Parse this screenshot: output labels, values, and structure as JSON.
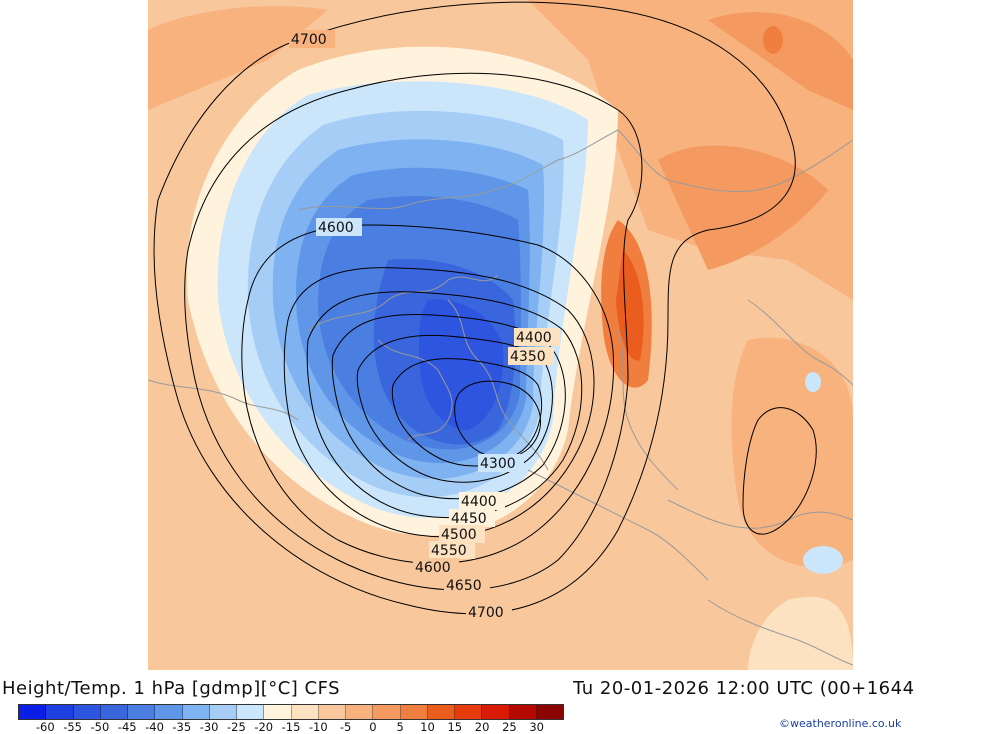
{
  "header": {
    "title_left": "Height/Temp. 1 hPa [gdmp][°C] CFS",
    "title_right": "Tu 20-01-2026 12:00 UTC (00+1644"
  },
  "credit": "©weatheronline.co.uk",
  "legend": {
    "ticks": [
      "-60",
      "-55",
      "-50",
      "-45",
      "-40",
      "-35",
      "-30",
      "-25",
      "-20",
      "-15",
      "-10",
      "-5",
      "0",
      "5",
      "10",
      "15",
      "20",
      "25",
      "30"
    ],
    "colors": [
      "#0a1ee8",
      "#1f3fe0",
      "#2d55e0",
      "#3a66dd",
      "#4a7ee0",
      "#5f96e8",
      "#7fb2f0",
      "#a5cdf6",
      "#cbe6fb",
      "#fff3dd",
      "#fde2c2",
      "#f9c79c",
      "#f7b27e",
      "#f49a60",
      "#f07e3e",
      "#eb5d1e",
      "#e63c0d",
      "#d91a05",
      "#b40a02",
      "#8a0501"
    ]
  },
  "contours": {
    "l4700_a": "4700",
    "l4600_a": "4600",
    "l4400_a": "4400",
    "l4350": "4350",
    "l4300": "4300",
    "l4400_b": "4400",
    "l4450": "4450",
    "l4500": "4500",
    "l4550": "4550",
    "l4600_b": "4600",
    "l4650": "4650",
    "l4700_b": "4700"
  }
}
